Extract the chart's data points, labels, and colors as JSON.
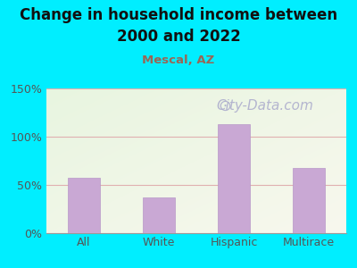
{
  "title_line1": "Change in household income between",
  "title_line2": "2000 and 2022",
  "subtitle": "Mescal, AZ",
  "categories": [
    "All",
    "White",
    "Hispanic",
    "Multirace"
  ],
  "values": [
    57,
    37,
    113,
    68
  ],
  "bar_color": "#c9a8d4",
  "bar_edge_color": "#b898c8",
  "title_fontsize": 12,
  "subtitle_fontsize": 9.5,
  "subtitle_color": "#996655",
  "background_outer": "#00eeff",
  "plot_bg_top_left": "#e8f5e0",
  "plot_bg_bottom_right": "#f8f8ee",
  "ylim": [
    0,
    150
  ],
  "yticks": [
    0,
    50,
    100,
    150
  ],
  "ytick_labels": [
    "0%",
    "50%",
    "100%",
    "150%"
  ],
  "grid_color": "#e0b0b0",
  "watermark": "City-Data.com",
  "watermark_color": "#aaaacc",
  "watermark_fontsize": 11,
  "tick_label_fontsize": 9,
  "tick_label_color": "#555555"
}
